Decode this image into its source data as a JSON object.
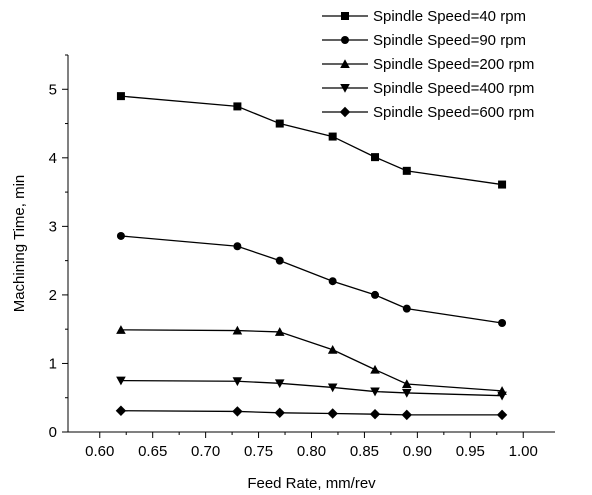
{
  "chart_data": {
    "type": "line",
    "title": "",
    "xlabel": "Feed Rate, mm/rev",
    "ylabel": "Machining Time, min",
    "xlim": [
      0.57,
      1.03
    ],
    "ylim": [
      0,
      5.5
    ],
    "xticks": [
      0.6,
      0.65,
      0.7,
      0.75,
      0.8,
      0.85,
      0.9,
      0.95,
      1.0
    ],
    "xtick_labels": [
      "0.60",
      "0.65",
      "0.70",
      "0.75",
      "0.80",
      "0.85",
      "0.90",
      "0.95",
      "1.00"
    ],
    "yticks": [
      0,
      1,
      2,
      3,
      4,
      5
    ],
    "ytick_labels": [
      "0",
      "1",
      "2",
      "3",
      "4",
      "5"
    ],
    "x": [
      0.62,
      0.73,
      0.77,
      0.82,
      0.86,
      0.89,
      0.98
    ],
    "legend_position": "top-right",
    "grid": false,
    "series": [
      {
        "name": "Spindle Speed=40 rpm",
        "marker": "square",
        "values": [
          4.9,
          4.75,
          4.5,
          4.31,
          4.01,
          3.81,
          3.61
        ]
      },
      {
        "name": "Spindle Speed=90 rpm",
        "marker": "circle",
        "values": [
          2.86,
          2.71,
          2.5,
          2.2,
          2.0,
          1.8,
          1.59
        ]
      },
      {
        "name": "Spindle Speed=200 rpm",
        "marker": "triangle-up",
        "values": [
          1.49,
          1.48,
          1.46,
          1.2,
          0.91,
          0.7,
          0.6
        ]
      },
      {
        "name": "Spindle Speed=400 rpm",
        "marker": "triangle-down",
        "values": [
          0.75,
          0.74,
          0.71,
          0.65,
          0.59,
          0.57,
          0.53
        ]
      },
      {
        "name": "Spindle Speed=600 rpm",
        "marker": "diamond",
        "values": [
          0.31,
          0.3,
          0.28,
          0.27,
          0.26,
          0.25,
          0.25
        ]
      }
    ]
  }
}
